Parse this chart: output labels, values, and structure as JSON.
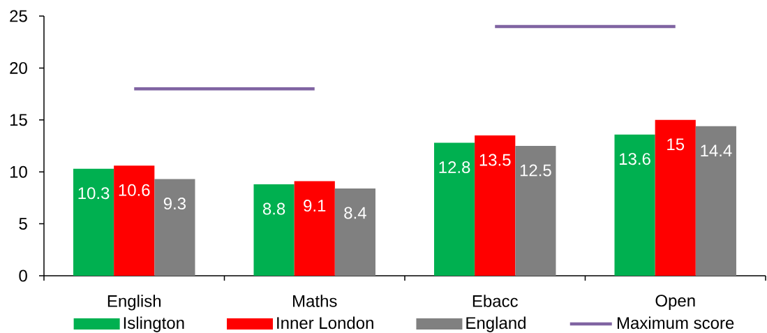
{
  "chart_data": {
    "type": "bar",
    "categories": [
      "English",
      "Maths",
      "Ebacc",
      "Open"
    ],
    "series": [
      {
        "name": "Islington",
        "color": "#00b050",
        "values": [
          10.3,
          8.8,
          12.8,
          13.6
        ],
        "value_labels": [
          "10.3",
          "8.8",
          "12.8",
          "13.6"
        ]
      },
      {
        "name": "Inner London",
        "color": "#ff0000",
        "values": [
          10.6,
          9.1,
          13.5,
          15
        ],
        "value_labels": [
          "10.6",
          "9.1",
          "13.5",
          "15"
        ]
      },
      {
        "name": "England",
        "color": "#808080",
        "values": [
          9.3,
          8.4,
          12.5,
          14.4
        ],
        "value_labels": [
          "9.3",
          "8.4",
          "12.5",
          "14.4"
        ]
      },
      {
        "name": "Maximum score",
        "type": "line",
        "color": "#8064a2",
        "values": [
          18,
          18,
          null,
          null
        ]
      },
      {
        "type": "line",
        "color": "#8064a2",
        "values": [
          null,
          null,
          24,
          24
        ]
      }
    ],
    "ylim": [
      0,
      25
    ],
    "yticks": [
      0,
      5,
      10,
      15,
      20,
      25
    ],
    "legend": "bottom"
  }
}
